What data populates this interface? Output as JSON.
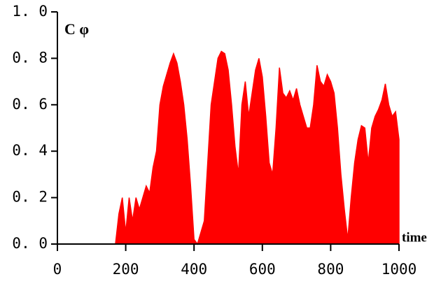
{
  "chart_data": {
    "type": "area",
    "y_label": "C φ",
    "x_label": "time",
    "color": "#ff0000",
    "xlim": [
      0,
      1000
    ],
    "ylim": [
      0,
      1.0
    ],
    "xticks": [
      0,
      200,
      400,
      600,
      800,
      1000
    ],
    "yticks": [
      {
        "value": 0,
        "label": "0. 0"
      },
      {
        "value": 0.2,
        "label": "0. 2"
      },
      {
        "value": 0.4,
        "label": "0. 4"
      },
      {
        "value": 0.6,
        "label": "0. 6"
      },
      {
        "value": 0.8,
        "label": "0. 8"
      },
      {
        "value": 1.0,
        "label": "1. 0"
      }
    ],
    "x": [
      0,
      10,
      20,
      30,
      40,
      50,
      60,
      70,
      80,
      90,
      100,
      110,
      120,
      130,
      140,
      150,
      160,
      170,
      180,
      190,
      200,
      210,
      220,
      230,
      240,
      250,
      260,
      270,
      280,
      290,
      300,
      310,
      320,
      330,
      340,
      350,
      360,
      370,
      380,
      390,
      400,
      410,
      420,
      430,
      440,
      450,
      460,
      470,
      480,
      490,
      500,
      510,
      520,
      530,
      540,
      550,
      560,
      570,
      580,
      590,
      600,
      610,
      620,
      630,
      640,
      650,
      660,
      670,
      680,
      690,
      700,
      710,
      720,
      730,
      740,
      750,
      760,
      770,
      780,
      790,
      800,
      810,
      820,
      830,
      840,
      850,
      860,
      870,
      880,
      890,
      900,
      910,
      920,
      930,
      940,
      950,
      960,
      970,
      980,
      990,
      1000
    ],
    "values": [
      0,
      0,
      0,
      0,
      0,
      0,
      0,
      0,
      0,
      0,
      0,
      0,
      0,
      0,
      0,
      0,
      0,
      0,
      0.13,
      0.2,
      0.05,
      0.2,
      0.1,
      0.2,
      0.15,
      0.2,
      0.25,
      0.22,
      0.33,
      0.4,
      0.6,
      0.68,
      0.73,
      0.78,
      0.82,
      0.78,
      0.7,
      0.6,
      0.45,
      0.25,
      0.02,
      0,
      0.05,
      0.1,
      0.35,
      0.6,
      0.7,
      0.8,
      0.83,
      0.82,
      0.75,
      0.6,
      0.42,
      0.3,
      0.6,
      0.7,
      0.55,
      0.65,
      0.75,
      0.8,
      0.72,
      0.55,
      0.35,
      0.3,
      0.5,
      0.76,
      0.65,
      0.63,
      0.66,
      0.62,
      0.67,
      0.6,
      0.55,
      0.5,
      0.5,
      0.6,
      0.77,
      0.7,
      0.68,
      0.73,
      0.7,
      0.65,
      0.5,
      0.3,
      0.15,
      0.02,
      0.2,
      0.35,
      0.45,
      0.51,
      0.5,
      0.35,
      0.5,
      0.55,
      0.58,
      0.62,
      0.69,
      0.6,
      0.55,
      0.57,
      0.45
    ]
  }
}
